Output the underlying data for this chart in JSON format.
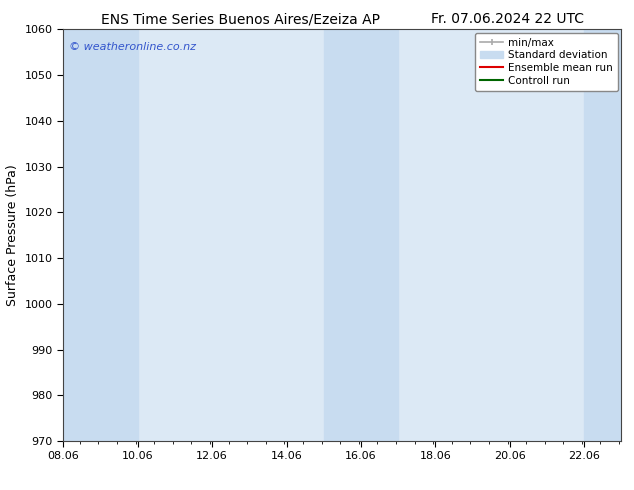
{
  "title_left": "ENS Time Series Buenos Aires/Ezeiza AP",
  "title_right": "Fr. 07.06.2024 22 UTC",
  "ylabel": "Surface Pressure (hPa)",
  "ylim": [
    970,
    1060
  ],
  "yticks": [
    970,
    980,
    990,
    1000,
    1010,
    1020,
    1030,
    1040,
    1050,
    1060
  ],
  "xlim_start": 8.06,
  "xlim_end": 23.06,
  "xtick_labels": [
    "08.06",
    "10.06",
    "12.06",
    "14.06",
    "16.06",
    "18.06",
    "20.06",
    "22.06"
  ],
  "xtick_positions": [
    8.06,
    10.06,
    12.06,
    14.06,
    16.06,
    18.06,
    20.06,
    22.06
  ],
  "watermark": "© weatheronline.co.nz",
  "watermark_color": "#3355cc",
  "bg_color": "#ffffff",
  "plot_bg_color": "#dce9f5",
  "shaded_bands": [
    {
      "x_start": 8.06,
      "x_end": 10.06,
      "color": "#c8dcf0"
    },
    {
      "x_start": 15.06,
      "x_end": 17.06,
      "color": "#c8dcf0"
    },
    {
      "x_start": 22.06,
      "x_end": 23.06,
      "color": "#c8dcf0"
    }
  ],
  "legend_minmax_color": "#aaaaaa",
  "legend_std_color": "#c8dcf0",
  "legend_ens_color": "#dd0000",
  "legend_ctrl_color": "#006600",
  "title_fontsize": 10,
  "axis_label_fontsize": 9,
  "tick_fontsize": 8,
  "legend_fontsize": 7.5
}
